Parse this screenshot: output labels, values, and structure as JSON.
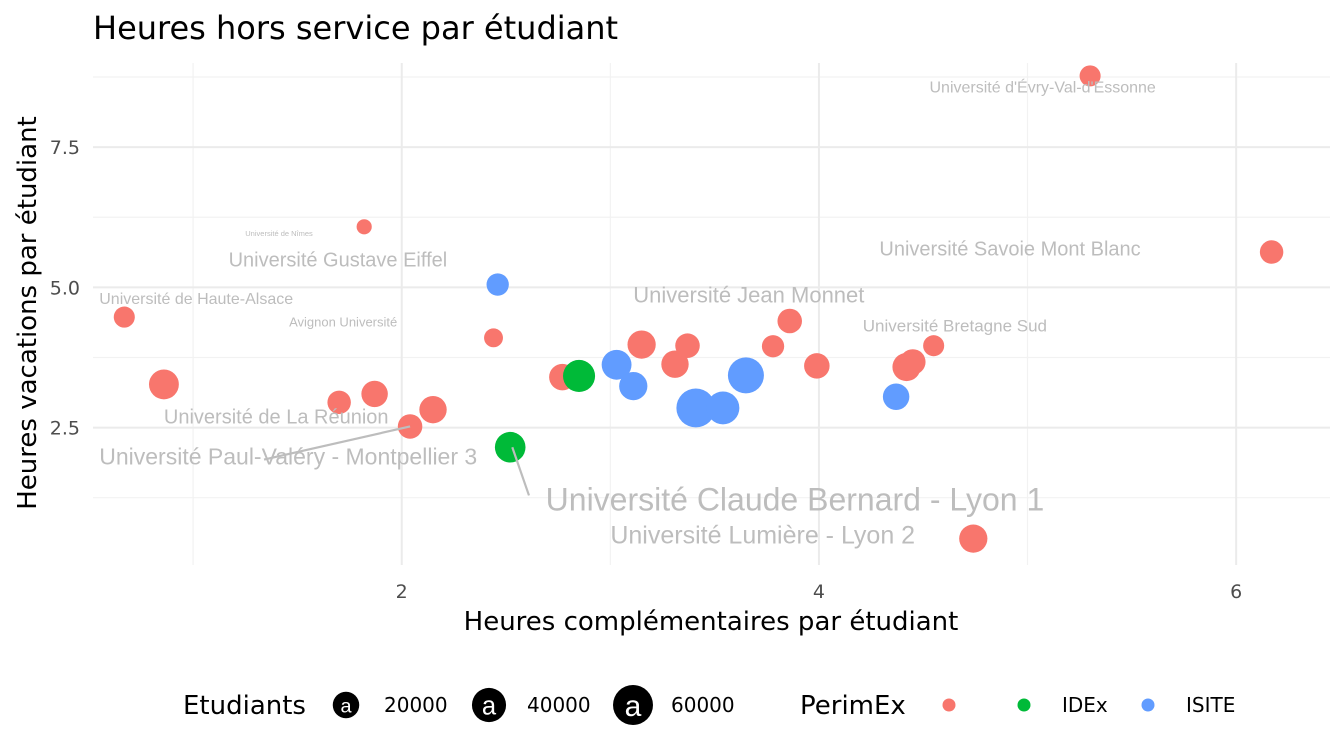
{
  "chart_data": {
    "type": "scatter",
    "title": "Heures hors service par étudiant",
    "xlabel": "Heures complémentaires par étudiant",
    "ylabel": "Heures vacations par étudiant",
    "xlim": [
      0.52,
      6.45
    ],
    "ylim": [
      0.05,
      9.0
    ],
    "x_ticks": [
      {
        "value": 2,
        "label": "2"
      },
      {
        "value": 4,
        "label": "4"
      },
      {
        "value": 6,
        "label": "6"
      }
    ],
    "y_ticks": [
      {
        "value": 2.5,
        "label": "2.5"
      },
      {
        "value": 5.0,
        "label": "5.0"
      },
      {
        "value": 7.5,
        "label": "7.5"
      }
    ],
    "grid": true,
    "legend_position": "bottom",
    "colors": {
      "none": "#F8766D",
      "IDEx": "#00BA38",
      "ISITE": "#619CFF"
    },
    "size_legend": {
      "title": "Etudiants",
      "entries": [
        {
          "value": 20000,
          "label": "20000"
        },
        {
          "value": 40000,
          "label": "40000"
        },
        {
          "value": 60000,
          "label": "60000"
        }
      ]
    },
    "color_legend": {
      "title": "PerimEx",
      "entries": [
        {
          "key": "none",
          "label": ""
        },
        {
          "key": "IDEx",
          "label": "IDEx"
        },
        {
          "key": "ISITE",
          "label": "ISITE"
        }
      ]
    },
    "points": [
      {
        "x": 5.3,
        "y": 8.77,
        "students": 10000,
        "group": "none"
      },
      {
        "x": 6.17,
        "y": 5.63,
        "students": 14000,
        "group": "none"
      },
      {
        "x": 1.82,
        "y": 6.08,
        "students": 3000,
        "group": "none"
      },
      {
        "x": 0.67,
        "y": 4.47,
        "students": 10000,
        "group": "none"
      },
      {
        "x": 2.46,
        "y": 5.05,
        "students": 12000,
        "group": "ISITE"
      },
      {
        "x": 2.44,
        "y": 4.1,
        "students": 7000,
        "group": "none"
      },
      {
        "x": 3.86,
        "y": 4.4,
        "students": 16000,
        "group": "none"
      },
      {
        "x": 4.55,
        "y": 3.96,
        "students": 10000,
        "group": "none"
      },
      {
        "x": 0.86,
        "y": 3.27,
        "students": 28000,
        "group": "none"
      },
      {
        "x": 1.7,
        "y": 2.95,
        "students": 14000,
        "group": "none"
      },
      {
        "x": 1.87,
        "y": 3.1,
        "students": 20000,
        "group": "none"
      },
      {
        "x": 2.04,
        "y": 2.52,
        "students": 16000,
        "group": "none"
      },
      {
        "x": 2.15,
        "y": 2.82,
        "students": 22000,
        "group": "none"
      },
      {
        "x": 2.52,
        "y": 2.15,
        "students": 30000,
        "group": "IDEx"
      },
      {
        "x": 2.77,
        "y": 3.4,
        "students": 20000,
        "group": "none"
      },
      {
        "x": 2.85,
        "y": 3.42,
        "students": 34000,
        "group": "IDEx"
      },
      {
        "x": 3.03,
        "y": 3.62,
        "students": 28000,
        "group": "ISITE"
      },
      {
        "x": 3.11,
        "y": 3.24,
        "students": 24000,
        "group": "ISITE"
      },
      {
        "x": 3.15,
        "y": 3.98,
        "students": 24000,
        "group": "none"
      },
      {
        "x": 3.31,
        "y": 3.63,
        "students": 22000,
        "group": "none"
      },
      {
        "x": 3.37,
        "y": 3.96,
        "students": 16000,
        "group": "none"
      },
      {
        "x": 3.41,
        "y": 2.85,
        "students": 56000,
        "group": "ISITE"
      },
      {
        "x": 3.54,
        "y": 2.85,
        "students": 36000,
        "group": "ISITE"
      },
      {
        "x": 3.65,
        "y": 3.43,
        "students": 46000,
        "group": "ISITE"
      },
      {
        "x": 3.78,
        "y": 3.95,
        "students": 12000,
        "group": "none"
      },
      {
        "x": 3.99,
        "y": 3.6,
        "students": 18000,
        "group": "none"
      },
      {
        "x": 4.37,
        "y": 3.05,
        "students": 20000,
        "group": "ISITE"
      },
      {
        "x": 4.42,
        "y": 3.58,
        "students": 24000,
        "group": "none"
      },
      {
        "x": 4.45,
        "y": 3.67,
        "students": 18000,
        "group": "none"
      },
      {
        "x": 4.74,
        "y": 0.52,
        "students": 24000,
        "group": "none"
      }
    ],
    "labels": [
      {
        "text": "Université d'Évry-Val-d'Essonne",
        "lx": 4.53,
        "ly": 8.47,
        "size": 16,
        "anchor": "start"
      },
      {
        "text": "Université Savoie Mont Blanc",
        "lx": 4.29,
        "ly": 5.57,
        "size": 20,
        "anchor": "start"
      },
      {
        "text": "Université de Nîmes",
        "lx": 1.25,
        "ly": 5.92,
        "size": 7.5,
        "anchor": "start"
      },
      {
        "text": "Université Gustave Eiffel",
        "lx": 1.17,
        "ly": 5.37,
        "size": 20,
        "anchor": "start"
      },
      {
        "text": "Université de Haute-Alsace",
        "lx": 0.55,
        "ly": 4.7,
        "size": 16,
        "anchor": "start"
      },
      {
        "text": "Avignon Université",
        "lx": 1.46,
        "ly": 4.3,
        "size": 13,
        "anchor": "start"
      },
      {
        "text": "Université Jean Monnet",
        "lx": 3.11,
        "ly": 4.73,
        "size": 22,
        "anchor": "start"
      },
      {
        "text": "Université Bretagne Sud",
        "lx": 4.21,
        "ly": 4.21,
        "size": 17,
        "anchor": "start"
      },
      {
        "text": "Université de La Réunion",
        "lx": 0.86,
        "ly": 2.57,
        "size": 20,
        "anchor": "start"
      },
      {
        "text": "Université Paul-Valéry - Montpellier 3",
        "lx": 0.55,
        "ly": 1.84,
        "size": 23,
        "anchor": "start",
        "lead": [
          1.34,
          1.93,
          2.04,
          2.52
        ]
      },
      {
        "text": "Université Claude Bernard - Lyon 1",
        "lx": 2.69,
        "ly": 1.02,
        "size": 32,
        "anchor": "start",
        "lead": [
          2.53,
          2.15,
          2.61,
          1.29
        ]
      },
      {
        "text": "Université Lumière - Lyon 2",
        "lx": 3.0,
        "ly": 0.43,
        "size": 25,
        "anchor": "start"
      }
    ]
  }
}
